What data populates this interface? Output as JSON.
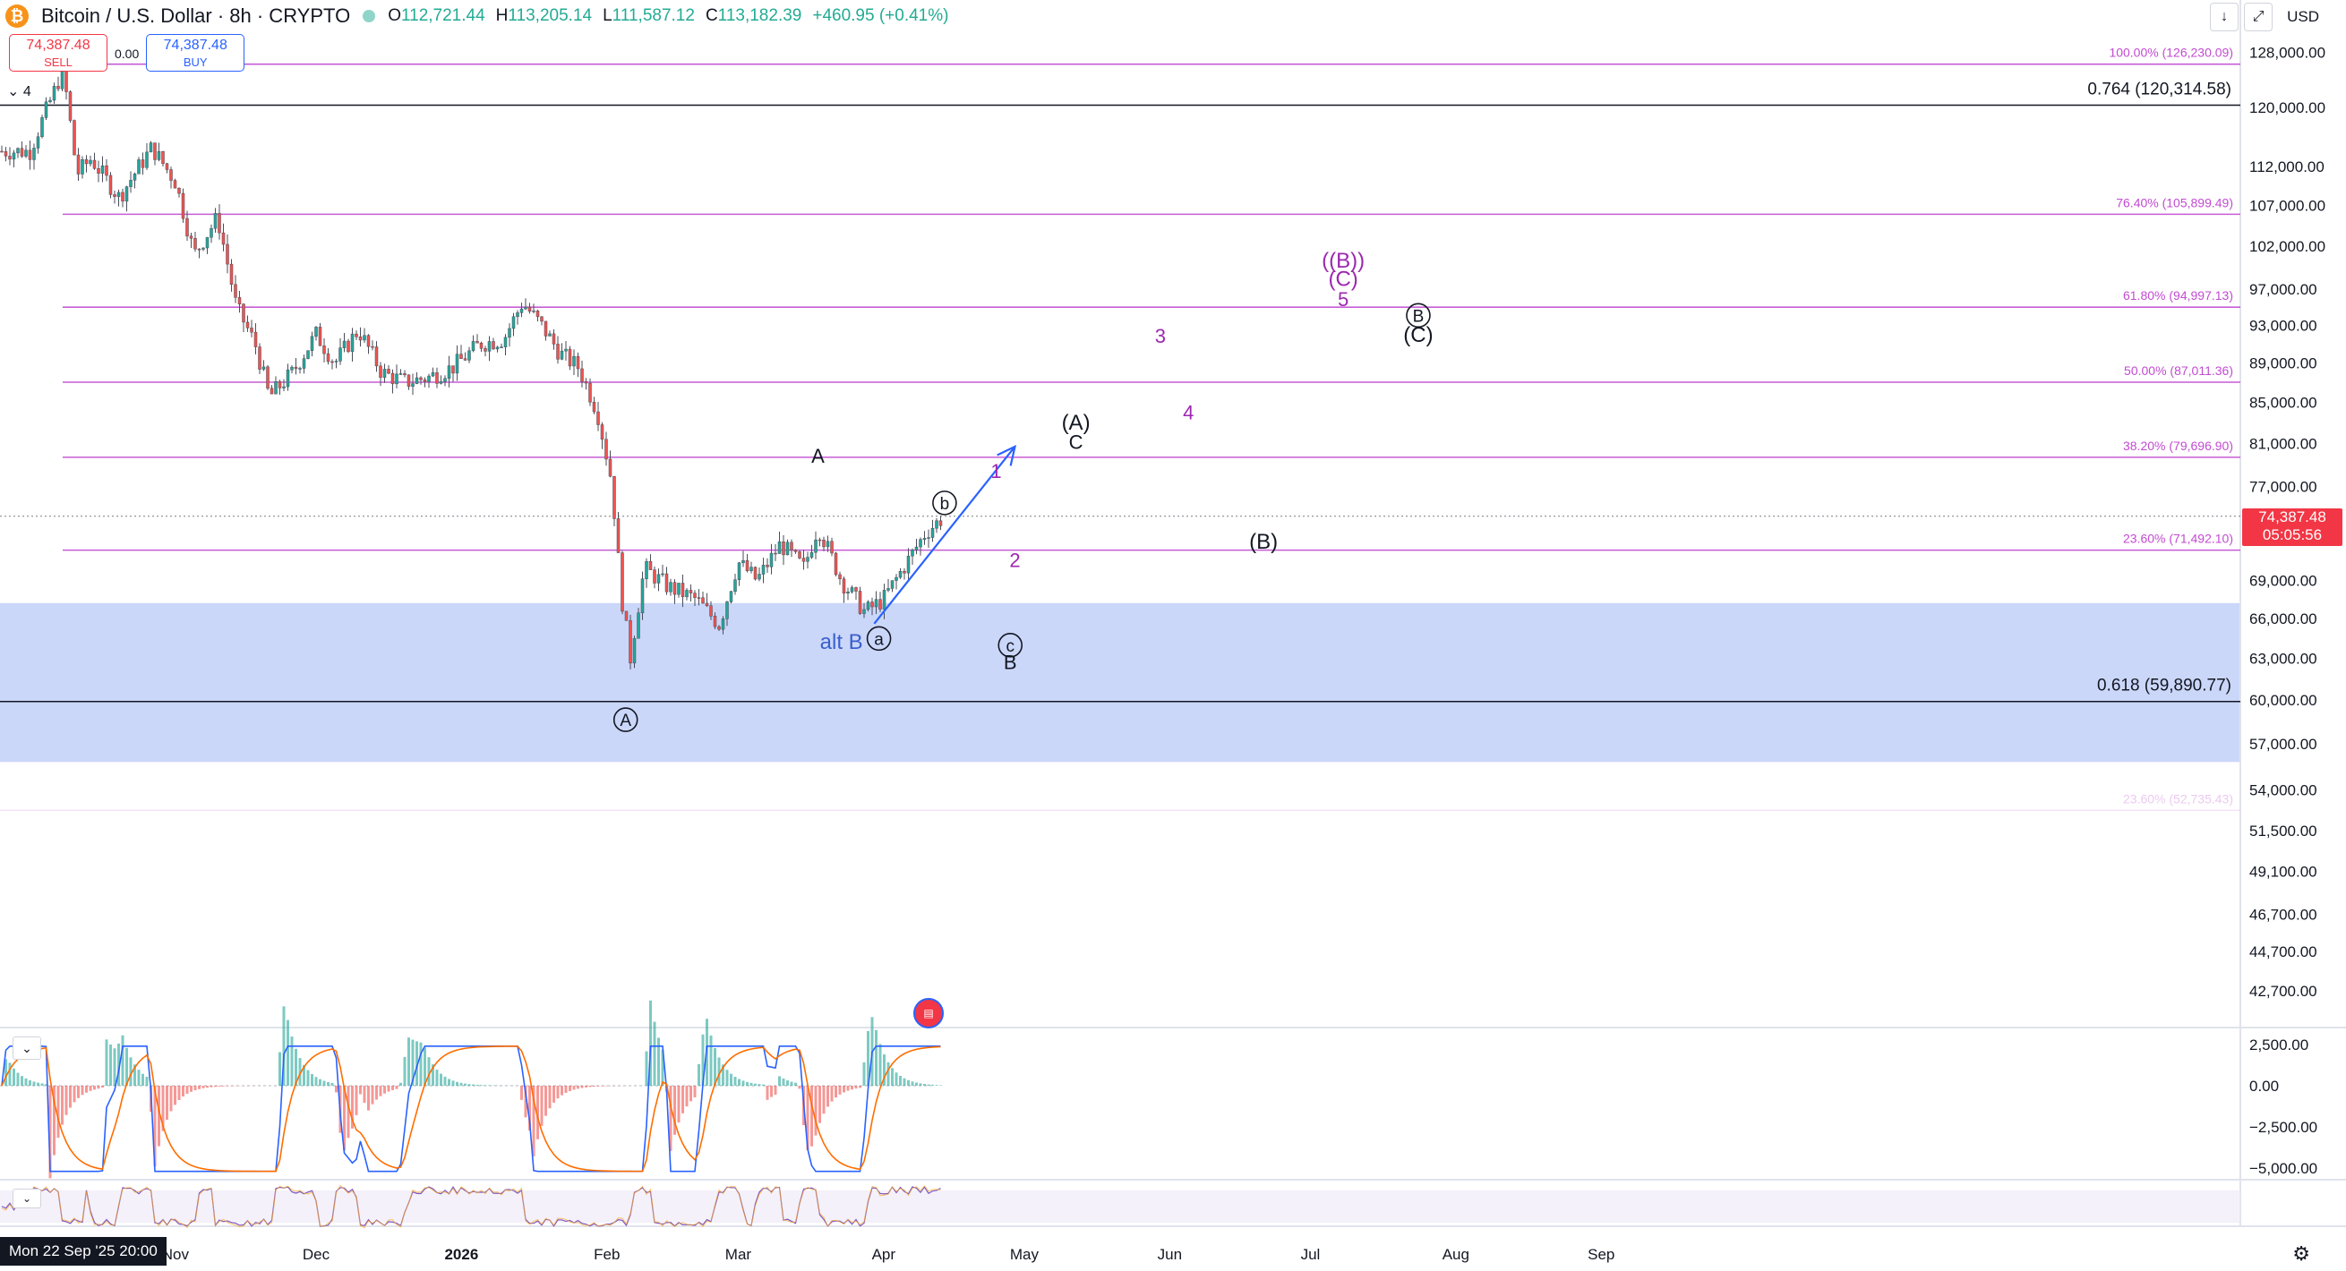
{
  "header": {
    "logo_glyph": "₿",
    "title": "Bitcoin / U.S. Dollar · 8h · CRYPTO",
    "ohlc": {
      "o_label": "O",
      "o": "112,721.44",
      "h_label": "H",
      "h": "113,205.14",
      "l_label": "L",
      "l": "111,587.12",
      "c_label": "C",
      "c": "113,182.39",
      "change": "+460.95 (+0.41%)"
    }
  },
  "trade": {
    "sell_price": "74,387.48",
    "sell_label": "SELL",
    "spread": "0.00",
    "buy_price": "74,387.48",
    "buy_label": "BUY"
  },
  "legend_collapse": "⌄ 4",
  "topright": {
    "download_icon": "↓",
    "fullscreen_icon": "⤢",
    "currency": "USD"
  },
  "price_axis": {
    "ticks": [
      "128,000.00",
      "120,000.00",
      "112,000.00",
      "107,000.00",
      "102,000.00",
      "97,000.00",
      "93,000.00",
      "89,000.00",
      "85,000.00",
      "81,000.00",
      "77,000.00",
      "69,000.00",
      "66,000.00",
      "63,000.00",
      "60,000.00",
      "57,000.00",
      "54,000.00",
      "51,500.00",
      "49,100.00",
      "46,700.00",
      "44,700.00",
      "42,700.00"
    ],
    "last_price": "74,387.48",
    "countdown": "05:05:56"
  },
  "macd_axis": [
    "2,500.00",
    "0.00",
    "−2,500.00",
    "−5,000.00"
  ],
  "time_axis": [
    "Nov",
    "Dec",
    "2026",
    "Feb",
    "Mar",
    "Apr",
    "May",
    "Jun",
    "Jul",
    "Aug",
    "Sep"
  ],
  "crosshair_time": "Mon 22 Sep '25   20:00",
  "fib_levels": [
    {
      "label": "100.00% (126,230.09)",
      "price": 126230.09
    },
    {
      "label": "76.40% (105,899.49)",
      "price": 105899.49
    },
    {
      "label": "61.80% (94,997.13)",
      "price": 94997.13
    },
    {
      "label": "50.00% (87,011.36)",
      "price": 87011.36
    },
    {
      "label": "38.20% (79,696.90)",
      "price": 79696.9
    },
    {
      "label": "23.60% (71,492.10)",
      "price": 71492.1
    },
    {
      "label": "23.60% (52,735.43)",
      "price": 52735.43
    }
  ],
  "black_levels": [
    {
      "label": "0.764 (120,314.58)",
      "price": 120314.58
    },
    {
      "label": "0.618 (59,890.77)",
      "price": 59890.77
    }
  ],
  "support_zone": {
    "top": 67200,
    "bottom": 55800,
    "color": "#a8bdf5"
  },
  "wave_labels": [
    {
      "text": "A",
      "circled": false,
      "color": "#131722",
      "t": "2026-03-18",
      "p": 79200
    },
    {
      "text": "A",
      "circled": true,
      "color": "#131722",
      "t": "2026-02-05",
      "p": 58200
    },
    {
      "text": "alt B",
      "circled": false,
      "color": "#3a5fcd",
      "t": "2026-03-23",
      "p": 63700
    },
    {
      "text": "a",
      "circled": true,
      "color": "#131722",
      "t": "2026-03-31",
      "p": 64000
    },
    {
      "text": "b",
      "circled": true,
      "color": "#131722",
      "t": "2026-04-14",
      "p": 75000
    },
    {
      "text": "c",
      "circled": true,
      "color": "#131722",
      "t": "2026-04-28",
      "p": 63500
    },
    {
      "text": "B",
      "circled": false,
      "color": "#131722",
      "t": "2026-04-28",
      "p": 62200
    },
    {
      "text": "1",
      "circled": false,
      "color": "#9c27b0",
      "t": "2026-04-25",
      "p": 77800
    },
    {
      "text": "2",
      "circled": false,
      "color": "#9c27b0",
      "t": "2026-04-29",
      "p": 70100
    },
    {
      "text": "(A)",
      "circled": false,
      "color": "#131722",
      "t": "2026-05-12",
      "p": 82300
    },
    {
      "text": "C",
      "circled": false,
      "color": "#131722",
      "t": "2026-05-12",
      "p": 80500
    },
    {
      "text": "3",
      "circled": false,
      "color": "#9c27b0",
      "t": "2026-05-30",
      "p": 91100
    },
    {
      "text": "4",
      "circled": false,
      "color": "#9c27b0",
      "t": "2026-06-05",
      "p": 83300
    },
    {
      "text": "(B)",
      "circled": false,
      "color": "#131722",
      "t": "2026-06-21",
      "p": 71600
    },
    {
      "text": "((B))",
      "circled": false,
      "color": "#9c27b0",
      "t": "2026-07-08",
      "p": 99500
    },
    {
      "text": "(C)",
      "circled": false,
      "color": "#9c27b0",
      "t": "2026-07-08",
      "p": 97400
    },
    {
      "text": "5",
      "circled": false,
      "color": "#9c27b0",
      "t": "2026-07-08",
      "p": 95100
    },
    {
      "text": "B",
      "circled": true,
      "color": "#131722",
      "t": "2026-07-24",
      "p": 93400
    },
    {
      "text": "(C)",
      "circled": false,
      "color": "#131722",
      "t": "2026-07-24",
      "p": 91200
    }
  ],
  "projection_arrow": {
    "from": {
      "t": "2026-03-30",
      "p": 65600
    },
    "to": {
      "t": "2026-04-29",
      "p": 80700
    },
    "color": "#2962ff"
  },
  "colors": {
    "up": "#26a69a",
    "down": "#ef5350",
    "fib": "#c24bd1",
    "macd": "#2962ff",
    "signal": "#ff6d00",
    "rsi": "#7e57c2"
  },
  "flag_icon": "flag-icon",
  "settings_icon": "gear-icon",
  "chart_data": {
    "type": "line",
    "title": "Bitcoin / U.S. Dollar · 8h · CRYPTO",
    "x": [
      "2025-10-01",
      "2025-10-06",
      "2025-10-08",
      "2025-10-11",
      "2025-10-14",
      "2025-10-20",
      "2025-10-27",
      "2025-11-01",
      "2025-11-05",
      "2025-11-10",
      "2025-11-14",
      "2025-11-18",
      "2025-11-21",
      "2025-11-26",
      "2025-12-01",
      "2025-12-05",
      "2025-12-10",
      "2025-12-15",
      "2025-12-20",
      "2025-12-25",
      "2025-12-30",
      "2026-01-05",
      "2026-01-10",
      "2026-01-14",
      "2026-01-18",
      "2026-01-22",
      "2026-01-26",
      "2026-01-30",
      "2026-02-02",
      "2026-02-04",
      "2026-02-06",
      "2026-02-09",
      "2026-02-14",
      "2026-02-20",
      "2026-02-25",
      "2026-03-01",
      "2026-03-05",
      "2026-03-10",
      "2026-03-15",
      "2026-03-18",
      "2026-03-23",
      "2026-03-28",
      "2026-04-01",
      "2026-04-06",
      "2026-04-10",
      "2026-04-14"
    ],
    "series": [
      {
        "values": [
          114000,
          122000,
          125500,
          111000,
          113000,
          108000,
          114500,
          110000,
          101000,
          105500,
          95000,
          91000,
          85500,
          88000,
          92000,
          89000,
          92500,
          88000,
          87000,
          87500,
          88500,
          91000,
          91500,
          95500,
          93000,
          90000,
          88500,
          84000,
          77500,
          68000,
          63000,
          70000,
          68500,
          67500,
          65500,
          70500,
          69000,
          72000,
          70000,
          73500,
          69000,
          66500,
          67500,
          70500,
          73000,
          74387
        ]
      }
    ],
    "ylim": [
      40500,
      131000
    ]
  }
}
